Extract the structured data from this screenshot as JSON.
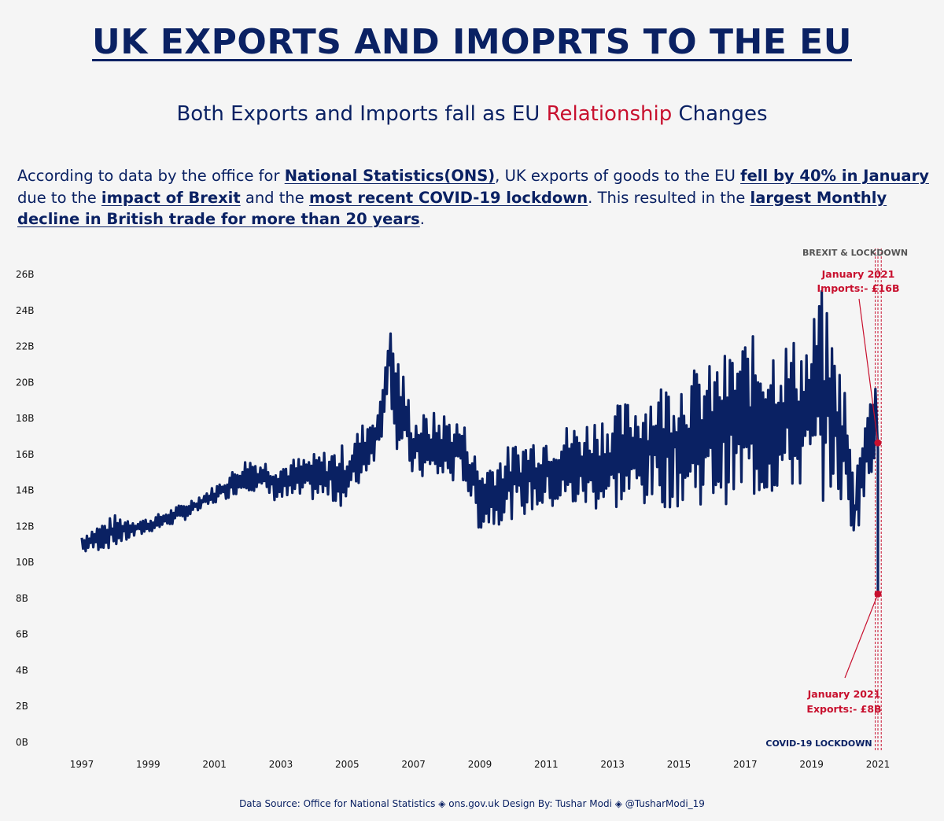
{
  "title": "UK EXPORTS AND IMOPRTS TO THE EU",
  "subtitle": {
    "before": "Both Exports and Imports fall as EU ",
    "highlight": "Relationship",
    "after": " Changes"
  },
  "intro": {
    "t1": "According to data by the office for ",
    "u1": "National Statistics(ONS)",
    "t2": ", UK exports of goods to the EU ",
    "u2": "fell by 40% in January",
    "t3": " due to the ",
    "u3": "impact of Brexit",
    "t4": " and the ",
    "u4": "most recent COVID-19 lockdown",
    "t5": ". This resulted in the ",
    "u5": "largest Monthly decline in British trade for more than 20 years",
    "t6": "."
  },
  "colors": {
    "line": "#0a2163",
    "accent": "#c8102e",
    "annotation_gray": "#555555"
  },
  "chart_data": {
    "type": "line",
    "title": "",
    "xlabel": "",
    "ylabel": "",
    "x_ticks": [
      "1997",
      "1999",
      "2001",
      "2003",
      "2005",
      "2007",
      "2009",
      "2011",
      "2013",
      "2015",
      "2017",
      "2019",
      "2021"
    ],
    "y_ticks": [
      "0B",
      "2B",
      "4B",
      "6B",
      "8B",
      "10B",
      "12B",
      "14B",
      "16B",
      "18B",
      "20B",
      "22B",
      "24B",
      "26B"
    ],
    "xlim": [
      1997,
      2021.2
    ],
    "ylim": [
      0,
      26
    ],
    "grid": false,
    "series_envelope": {
      "name": "",
      "x": [
        1997.0,
        1998.0,
        1999.0,
        2000.0,
        2001.0,
        2002.0,
        2003.0,
        2004.0,
        2005.0,
        2006.0,
        2006.25,
        2006.5,
        2007.0,
        2008.0,
        2008.5,
        2009.0,
        2010.0,
        2011.0,
        2012.0,
        2013.0,
        2014.0,
        2015.0,
        2016.0,
        2017.0,
        2018.0,
        2019.0,
        2019.2,
        2019.6,
        2020.0,
        2020.3,
        2020.5,
        2020.8,
        2020.92,
        2021.0
      ],
      "high": [
        11.6,
        12.6,
        12.4,
        13.2,
        14.2,
        15.8,
        15.6,
        16.0,
        16.6,
        19.0,
        23.2,
        22.0,
        18.2,
        18.4,
        17.8,
        15.4,
        16.6,
        17.4,
        17.8,
        18.6,
        19.6,
        20.6,
        21.0,
        22.6,
        22.4,
        22.6,
        26.0,
        22.8,
        20.0,
        14.0,
        18.6,
        19.4,
        22.4,
        16.2
      ],
      "low": [
        10.4,
        10.8,
        11.6,
        12.2,
        13.2,
        14.0,
        13.2,
        13.4,
        13.0,
        16.2,
        20.2,
        15.6,
        14.6,
        14.2,
        14.4,
        11.6,
        12.4,
        12.8,
        12.8,
        12.8,
        13.0,
        13.0,
        13.2,
        13.2,
        13.6,
        14.0,
        13.0,
        14.0,
        12.6,
        11.4,
        12.4,
        14.0,
        16.0,
        8.2
      ]
    },
    "annotations": [
      {
        "label": "BREXIT & LOCKDOWN"
      },
      {
        "label": "January 2021",
        "label2": "Imports:- £16B",
        "x": 2021.0,
        "y": 16.6
      },
      {
        "label": "January 2021",
        "label2": "Exports:- £8B",
        "x": 2021.0,
        "y": 8.2
      },
      {
        "label": "COVID-19 LOCKDOWN"
      }
    ]
  },
  "footer": "Data Source: Office for National Statistics ◈ ons.gov.uk    Design By: Tushar Modi ◈ @TusharModi_19"
}
